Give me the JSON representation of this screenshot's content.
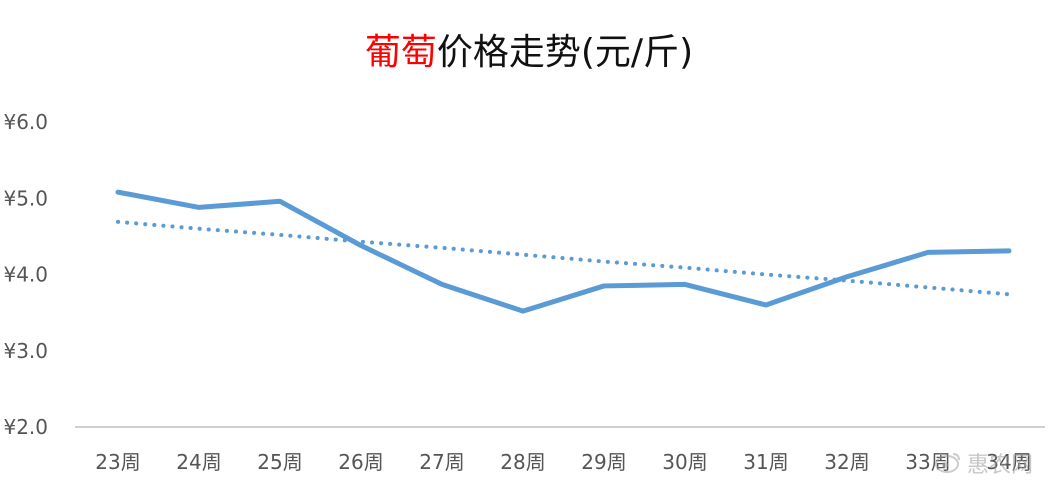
{
  "chart_data": {
    "type": "line",
    "title": {
      "highlight": "葡萄",
      "rest": "价格走势(元/斤)",
      "highlight_color": "#ff0000"
    },
    "xlabel": "",
    "ylabel": "",
    "categories": [
      "23周",
      "24周",
      "25周",
      "26周",
      "27周",
      "28周",
      "29周",
      "30周",
      "31周",
      "32周",
      "33周",
      "34周"
    ],
    "y_ticks": [
      "¥2.0",
      "¥3.0",
      "¥4.0",
      "¥5.0",
      "¥6.0"
    ],
    "ylim": [
      2.0,
      6.0
    ],
    "grid": false,
    "legend": "none",
    "series": [
      {
        "values": [
          5.08,
          4.88,
          4.96,
          4.38,
          3.87,
          3.52,
          3.85,
          3.87,
          3.6,
          3.97,
          4.29,
          4.31
        ],
        "color": "#5b9bd5",
        "style": "solid"
      },
      {
        "values": [
          4.69,
          4.6,
          4.52,
          4.43,
          4.35,
          4.26,
          4.17,
          4.09,
          4.0,
          3.92,
          3.83,
          3.74
        ],
        "color": "#5b9bd5",
        "style": "dotted"
      }
    ]
  },
  "watermark": {
    "text": "惠农网",
    "icon": "weibo-icon"
  }
}
